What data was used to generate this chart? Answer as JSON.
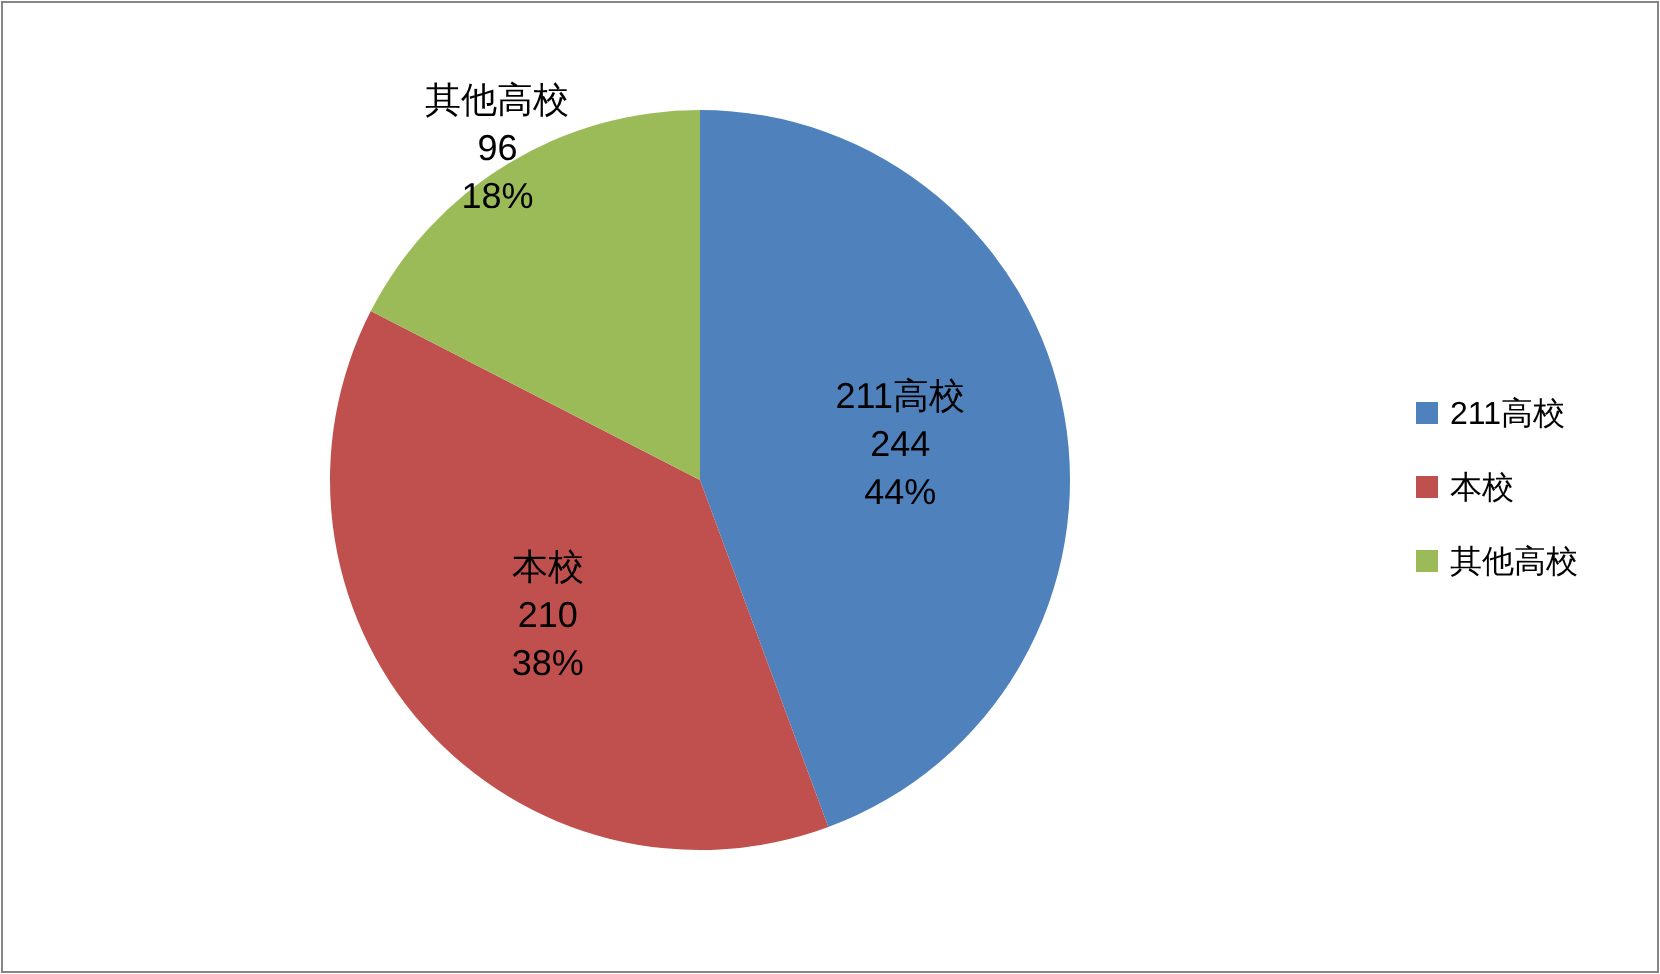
{
  "chart_data": {
    "type": "pie",
    "categories": [
      "211高校",
      "本校",
      "其他高校"
    ],
    "values": [
      244,
      210,
      96
    ],
    "colors": [
      "#4f81bd",
      "#c0504d",
      "#9bbb59"
    ],
    "value_labels": [
      "244\n44%",
      "210\n38%",
      "96\n18%"
    ],
    "legend": "right"
  }
}
